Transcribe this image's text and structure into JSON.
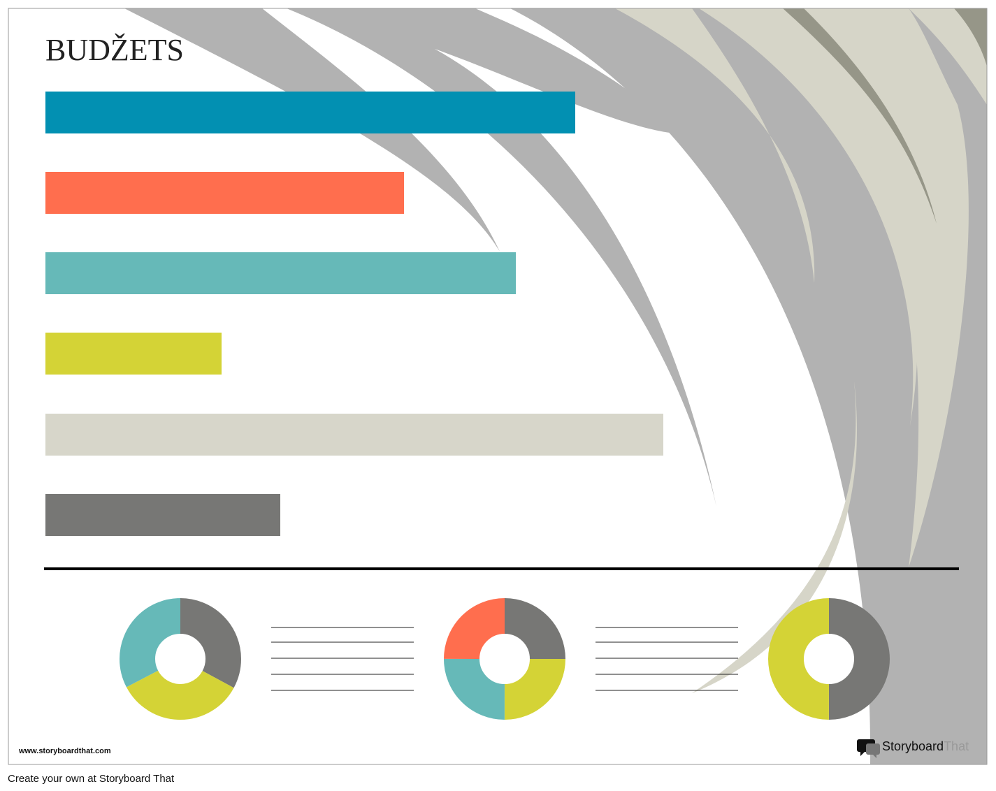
{
  "header": {
    "title": "BUDŽETS"
  },
  "footer": {
    "url": "www.storyboardthat.com",
    "logo": {
      "brand": "Storyboard",
      "suffix": "That"
    }
  },
  "caption": "Create your own at Storyboard That"
}
